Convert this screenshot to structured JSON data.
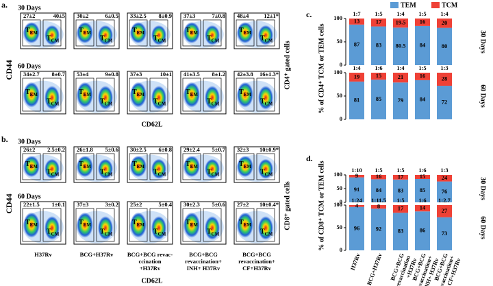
{
  "panels": {
    "a": "a.",
    "b": "b.",
    "c": "c.",
    "d": "d."
  },
  "gate_labels": {
    "t": "T",
    "em": "EM",
    "cm": "CM"
  },
  "flow": [
    {
      "side_label": "CD4⁺ gated cells",
      "x_axis": "CD62L",
      "y_axis": "CD44",
      "rows": [
        {
          "title": "30 Days",
          "plots": [
            [
              "27±2",
              "40±5"
            ],
            [
              "30±2",
              "6±0.5"
            ],
            [
              "33±2.5",
              "8±0.9"
            ],
            [
              "37±3",
              "7±0.8"
            ],
            [
              "48±4",
              "12±1*"
            ]
          ]
        },
        {
          "title": "60 Days",
          "plots": [
            [
              "34±2.7",
              "8±0.7"
            ],
            [
              "53±4",
              "9±0.8"
            ],
            [
              "37±3",
              "10±1"
            ],
            [
              "41±3.5",
              "8±1.2"
            ],
            [
              "42±3.8",
              "16±1.3*"
            ]
          ]
        }
      ]
    },
    {
      "side_label": "CD8⁺ gated cells",
      "x_axis": "CD62L",
      "y_axis": "CD44",
      "rows": [
        {
          "title": "30 Days",
          "plots": [
            [
              "26±2",
              "2.5±0.2"
            ],
            [
              "26±1.8",
              "5±0.6"
            ],
            [
              "30±2.5",
              "6±0.8"
            ],
            [
              "29±2.4",
              "5±0.7"
            ],
            [
              "32±3",
              "10±0.9*"
            ]
          ]
        },
        {
          "title": "60 Days",
          "plots": [
            [
              "22±1.5",
              "1±0.1"
            ],
            [
              "37±3",
              "3±0.2"
            ],
            [
              "25±2",
              "5±0.4"
            ],
            [
              "30±2.3",
              "5±0.6"
            ],
            [
              "27±2",
              "10±0.4*"
            ]
          ]
        }
      ],
      "groups": [
        "H37Rv",
        "BCG+H37Rv",
        "BCG+BCG revac- ccination +H37Rv",
        "BCG+BCG revaccination+ INH+ H37Rv",
        "BCG+BCG revaccination+ CF+H37Rv"
      ]
    }
  ],
  "chart_data": [
    {
      "type": "bar",
      "stacked": true,
      "side_title": "30 Days",
      "ylabel": "% of CD4⁺ TCM or TEM cells",
      "categories": [
        null,
        null,
        null,
        null,
        null
      ],
      "ylim": [
        0,
        100
      ],
      "yticks": [
        0,
        50,
        100
      ],
      "annotations": [
        "1:7",
        "1:5",
        "1:4",
        "1:5",
        "1:4"
      ],
      "series": [
        {
          "name": "TEM",
          "color": "#5b9bd5",
          "values": [
            87,
            83,
            80.5,
            84,
            80
          ]
        },
        {
          "name": "TCM",
          "color": "#ef4136",
          "values": [
            13,
            17,
            19.5,
            16,
            20
          ]
        }
      ]
    },
    {
      "type": "bar",
      "stacked": true,
      "side_title": "60 Days",
      "categories": [
        null,
        null,
        null,
        null,
        null
      ],
      "ylim": [
        0,
        100
      ],
      "yticks": [
        0,
        50,
        100
      ],
      "annotations": [
        "1:4",
        "1:6",
        "1:4",
        "1:5",
        "1:3"
      ],
      "series": [
        {
          "name": "TEM",
          "color": "#5b9bd5",
          "values": [
            81,
            85,
            79,
            84,
            72
          ]
        },
        {
          "name": "TCM",
          "color": "#ef4136",
          "values": [
            19,
            15,
            21,
            16,
            28
          ]
        }
      ]
    },
    {
      "type": "bar",
      "stacked": true,
      "side_title": "30 Days",
      "ylabel": "% of CD8⁺ TCM or TEM cells",
      "categories": [
        null,
        null,
        null,
        null,
        null
      ],
      "ylim": [
        0,
        100
      ],
      "yticks": [
        0,
        50,
        100
      ],
      "annotations": [
        "1:10",
        "1:5",
        "1:5",
        "1:6",
        "1:3"
      ],
      "series": [
        {
          "name": "TEM",
          "color": "#5b9bd5",
          "values": [
            91,
            84,
            83,
            85,
            76
          ]
        },
        {
          "name": "TCM",
          "color": "#ef4136",
          "values": [
            9,
            16,
            17,
            15,
            24
          ]
        }
      ]
    },
    {
      "type": "bar",
      "stacked": true,
      "side_title": "60 Days",
      "categories": [
        "H37Rv",
        "BCG+H37Rv",
        "BCG+BCG revaccination +H37Rv",
        "BCG+BCG revaccination+ INH+ H37Rv",
        "BCG+BCG revaccination+ CF+H37Rv"
      ],
      "ylim": [
        0,
        100
      ],
      "yticks": [
        0,
        50,
        100
      ],
      "annotations": [
        "1:24",
        "1:11.5",
        "1:5",
        "1:6",
        "1:2.7"
      ],
      "series": [
        {
          "name": "TEM",
          "color": "#5b9bd5",
          "values": [
            96,
            92,
            83,
            86,
            73
          ]
        },
        {
          "name": "TCM",
          "color": "#ef4136",
          "values": [
            4,
            8,
            17,
            14,
            27
          ]
        }
      ]
    }
  ]
}
